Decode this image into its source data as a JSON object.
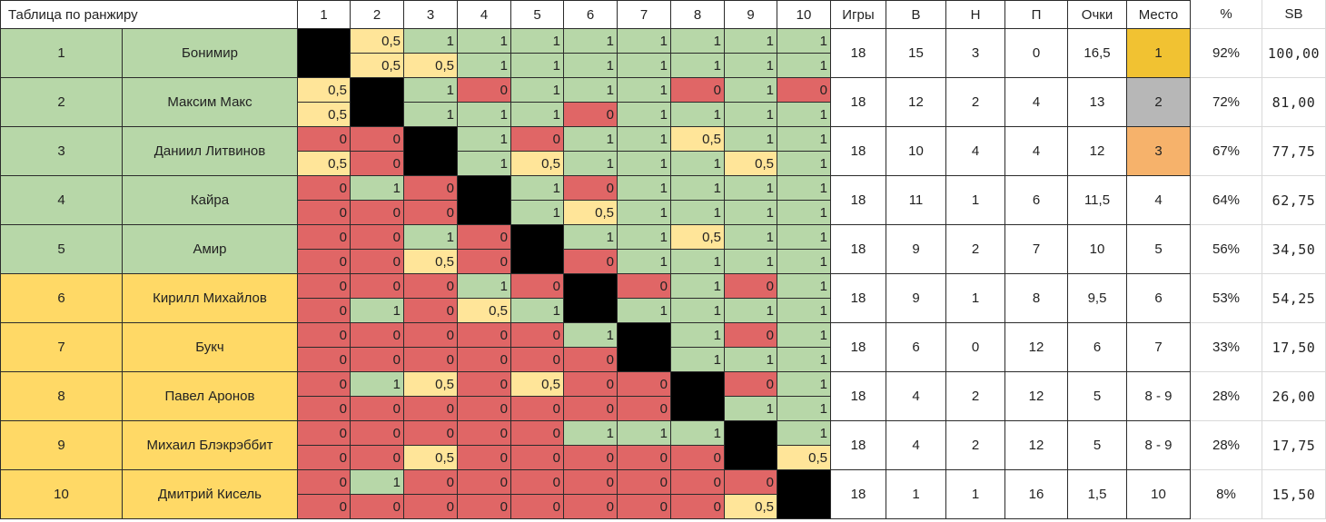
{
  "colors": {
    "green_row": "#b7d7a8",
    "yellow_row": "#ffd966",
    "win": "#b7d7a8",
    "draw": "#ffe599",
    "loss": "#e06666",
    "self": "#000000",
    "gold": "#f1c232",
    "silver": "#b7b7b7",
    "bronze": "#f6b26b",
    "blank": "#ffffff"
  },
  "sheet": {
    "title": "Таблица по ранжиру",
    "round_headers": [
      "1",
      "2",
      "3",
      "4",
      "5",
      "6",
      "7",
      "8",
      "9",
      "10"
    ],
    "stat_headers": [
      "Игры",
      "В",
      "Н",
      "П",
      "Очки",
      "Место",
      "%",
      "SB"
    ],
    "players": [
      {
        "num": "1",
        "name": "Бонимир",
        "group": "green",
        "top": [
          "",
          "0,5",
          "1",
          "1",
          "1",
          "1",
          "1",
          "1",
          "1",
          "1"
        ],
        "bottom": [
          "",
          "0,5",
          "0,5",
          "1",
          "1",
          "1",
          "1",
          "1",
          "1",
          "1"
        ],
        "games": "18",
        "w": "15",
        "d": "3",
        "l": "0",
        "points": "16,5",
        "place": "1",
        "medal": "gold",
        "pct": "92%",
        "sb": "100,00"
      },
      {
        "num": "2",
        "name": "Максим Макс",
        "group": "green",
        "top": [
          "0,5",
          "",
          "1",
          "0",
          "1",
          "1",
          "1",
          "0",
          "1",
          "0"
        ],
        "bottom": [
          "0,5",
          "",
          "1",
          "1",
          "1",
          "0",
          "1",
          "1",
          "1",
          "1"
        ],
        "games": "18",
        "w": "12",
        "d": "2",
        "l": "4",
        "points": "13",
        "place": "2",
        "medal": "silver",
        "pct": "72%",
        "sb": "81,00"
      },
      {
        "num": "3",
        "name": "Даниил Литвинов",
        "group": "green",
        "top": [
          "0",
          "0",
          "",
          "1",
          "0",
          "1",
          "1",
          "0,5",
          "1",
          "1"
        ],
        "bottom": [
          "0,5",
          "0",
          "",
          "1",
          "0,5",
          "1",
          "1",
          "1",
          "0,5",
          "1"
        ],
        "games": "18",
        "w": "10",
        "d": "4",
        "l": "4",
        "points": "12",
        "place": "3",
        "medal": "bronze",
        "pct": "67%",
        "sb": "77,75"
      },
      {
        "num": "4",
        "name": "Кайра",
        "group": "green",
        "top": [
          "0",
          "1",
          "0",
          "",
          "1",
          "0",
          "1",
          "1",
          "1",
          "1"
        ],
        "bottom": [
          "0",
          "0",
          "0",
          "",
          "1",
          "0,5",
          "1",
          "1",
          "1",
          "1"
        ],
        "games": "18",
        "w": "11",
        "d": "1",
        "l": "6",
        "points": "11,5",
        "place": "4",
        "medal": "",
        "pct": "64%",
        "sb": "62,75"
      },
      {
        "num": "5",
        "name": "Амир",
        "group": "green",
        "top": [
          "0",
          "0",
          "1",
          "0",
          "",
          "1",
          "1",
          "0,5",
          "1",
          "1"
        ],
        "bottom": [
          "0",
          "0",
          "0,5",
          "0",
          "",
          "0",
          "1",
          "1",
          "1",
          "1"
        ],
        "games": "18",
        "w": "9",
        "d": "2",
        "l": "7",
        "points": "10",
        "place": "5",
        "medal": "",
        "pct": "56%",
        "sb": "34,50"
      },
      {
        "num": "6",
        "name": "Кирилл Михайлов",
        "group": "yellow",
        "top": [
          "0",
          "0",
          "0",
          "1",
          "0",
          "",
          "0",
          "1",
          "0",
          "1"
        ],
        "bottom": [
          "0",
          "1",
          "0",
          "0,5",
          "1",
          "",
          "1",
          "1",
          "1",
          "1"
        ],
        "games": "18",
        "w": "9",
        "d": "1",
        "l": "8",
        "points": "9,5",
        "place": "6",
        "medal": "",
        "pct": "53%",
        "sb": "54,25"
      },
      {
        "num": "7",
        "name": "Букч",
        "group": "yellow",
        "top": [
          "0",
          "0",
          "0",
          "0",
          "0",
          "1",
          "",
          "1",
          "0",
          "1"
        ],
        "bottom": [
          "0",
          "0",
          "0",
          "0",
          "0",
          "0",
          "",
          "1",
          "1",
          "1"
        ],
        "games": "18",
        "w": "6",
        "d": "0",
        "l": "12",
        "points": "6",
        "place": "7",
        "medal": "",
        "pct": "33%",
        "sb": "17,50"
      },
      {
        "num": "8",
        "name": "Павел Аронов",
        "group": "yellow",
        "top": [
          "0",
          "1",
          "0,5",
          "0",
          "0,5",
          "0",
          "0",
          "",
          "0",
          "1"
        ],
        "bottom": [
          "0",
          "0",
          "0",
          "0",
          "0",
          "0",
          "0",
          "",
          "1",
          "1"
        ],
        "games": "18",
        "w": "4",
        "d": "2",
        "l": "12",
        "points": "5",
        "place": "8 - 9",
        "medal": "",
        "pct": "28%",
        "sb": "26,00"
      },
      {
        "num": "9",
        "name": "Михаил Блэкрэббит",
        "group": "yellow",
        "top": [
          "0",
          "0",
          "0",
          "0",
          "0",
          "1",
          "1",
          "1",
          "",
          "1"
        ],
        "bottom": [
          "0",
          "0",
          "0,5",
          "0",
          "0",
          "0",
          "0",
          "0",
          "",
          "0,5"
        ],
        "games": "18",
        "w": "4",
        "d": "2",
        "l": "12",
        "points": "5",
        "place": "8 - 9",
        "medal": "",
        "pct": "28%",
        "sb": "17,75"
      },
      {
        "num": "10",
        "name": "Дмитрий Кисель",
        "group": "yellow",
        "top": [
          "0",
          "1",
          "0",
          "0",
          "0",
          "0",
          "0",
          "0",
          "0",
          ""
        ],
        "bottom": [
          "0",
          "0",
          "0",
          "0",
          "0",
          "0",
          "0",
          "0",
          "0,5",
          ""
        ],
        "games": "18",
        "w": "1",
        "d": "1",
        "l": "16",
        "points": "1,5",
        "place": "10",
        "medal": "",
        "pct": "8%",
        "sb": "15,50"
      }
    ]
  }
}
